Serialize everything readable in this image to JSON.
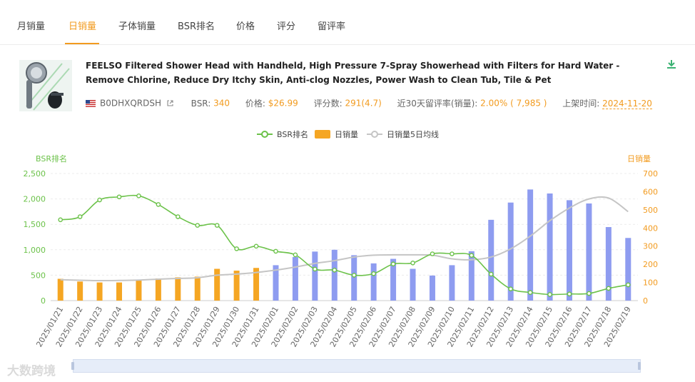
{
  "tabs": [
    "月销量",
    "日销量",
    "子体销量",
    "BSR排名",
    "价格",
    "评分",
    "留评率"
  ],
  "active_tab": "日销量",
  "product": {
    "title": "FEELSO Filtered Shower Head with Handheld, High Pressure 7-Spray Showerhead with Filters for Hard Water - Remove Chlorine, Reduce Dry Itchy Skin, Anti-clog Nozzles, Power Wash to Clean Tub, Tile & Pet",
    "asin": "B0DHXQRDSH",
    "bsr_label": "BSR:",
    "bsr_value": "340",
    "price_label": "价格:",
    "price_value": "$26.99",
    "rating_label": "评分数:",
    "rating_value": "291(4.7)",
    "review_rate_label": "近30天留评率(销量):",
    "review_rate_value": "2.00% ( 7,985 )",
    "listed_label": "上架时间:",
    "listed_value": "2024-11-20"
  },
  "watermark": "大数跨境",
  "chart_data": {
    "type": "bar",
    "legend": [
      "BSR排名",
      "日销量",
      "日销量5日均线"
    ],
    "left_axis_label": "BSR排名",
    "right_axis_label": "日销量",
    "left_ylim": [
      0,
      2500
    ],
    "right_ylim": [
      0,
      700
    ],
    "left_ticks": [
      "2,500",
      "2,000",
      "1,500",
      "1,000",
      "500",
      "0"
    ],
    "right_ticks": [
      "700",
      "600",
      "500",
      "400",
      "300",
      "200",
      "100",
      "0"
    ],
    "categories": [
      "2025/01/21",
      "2025/01/22",
      "2025/01/23",
      "2025/01/24",
      "2025/01/25",
      "2025/01/26",
      "2025/01/27",
      "2025/01/28",
      "2025/01/29",
      "2025/01/30",
      "2025/01/31",
      "2025/02/01",
      "2025/02/02",
      "2025/02/03",
      "2025/02/04",
      "2025/02/05",
      "2025/02/06",
      "2025/02/07",
      "2025/02/08",
      "2025/02/09",
      "2025/02/10",
      "2025/02/11",
      "2025/02/12",
      "2025/02/13",
      "2025/02/14",
      "2025/02/15",
      "2025/02/16",
      "2025/02/17",
      "2025/02/18",
      "2025/02/19"
    ],
    "series": [
      {
        "name": "日销量",
        "axis": "right",
        "values": [
          120,
          105,
          100,
          100,
          112,
          122,
          128,
          132,
          175,
          165,
          180,
          195,
          240,
          270,
          280,
          250,
          205,
          230,
          175,
          138,
          195,
          272,
          445,
          540,
          612,
          590,
          553,
          535,
          405,
          345
        ]
      },
      {
        "name": "BSR排名",
        "axis": "left",
        "values": [
          1590,
          1650,
          1980,
          2040,
          2060,
          1890,
          1650,
          1480,
          1480,
          1020,
          1070,
          970,
          900,
          620,
          600,
          500,
          530,
          720,
          740,
          920,
          920,
          890,
          520,
          230,
          160,
          120,
          130,
          140,
          240,
          310
        ]
      },
      {
        "name": "日销量5日均线",
        "axis": "right",
        "values": [
          115,
          112,
          110,
          111,
          113,
          118,
          122,
          126,
          140,
          146,
          155,
          168,
          185,
          205,
          220,
          240,
          250,
          252,
          252,
          250,
          230,
          225,
          240,
          285,
          355,
          440,
          510,
          560,
          565,
          490
        ]
      }
    ],
    "colors": {
      "bsr": "#6cc24a",
      "bar_before": "#f5a623",
      "bar_after": "#8e9cf0",
      "ma": "#c5c5c5",
      "left_axis": "#6cc24a",
      "right_axis": "#f29b1f"
    },
    "highlight_split_index": 11
  }
}
